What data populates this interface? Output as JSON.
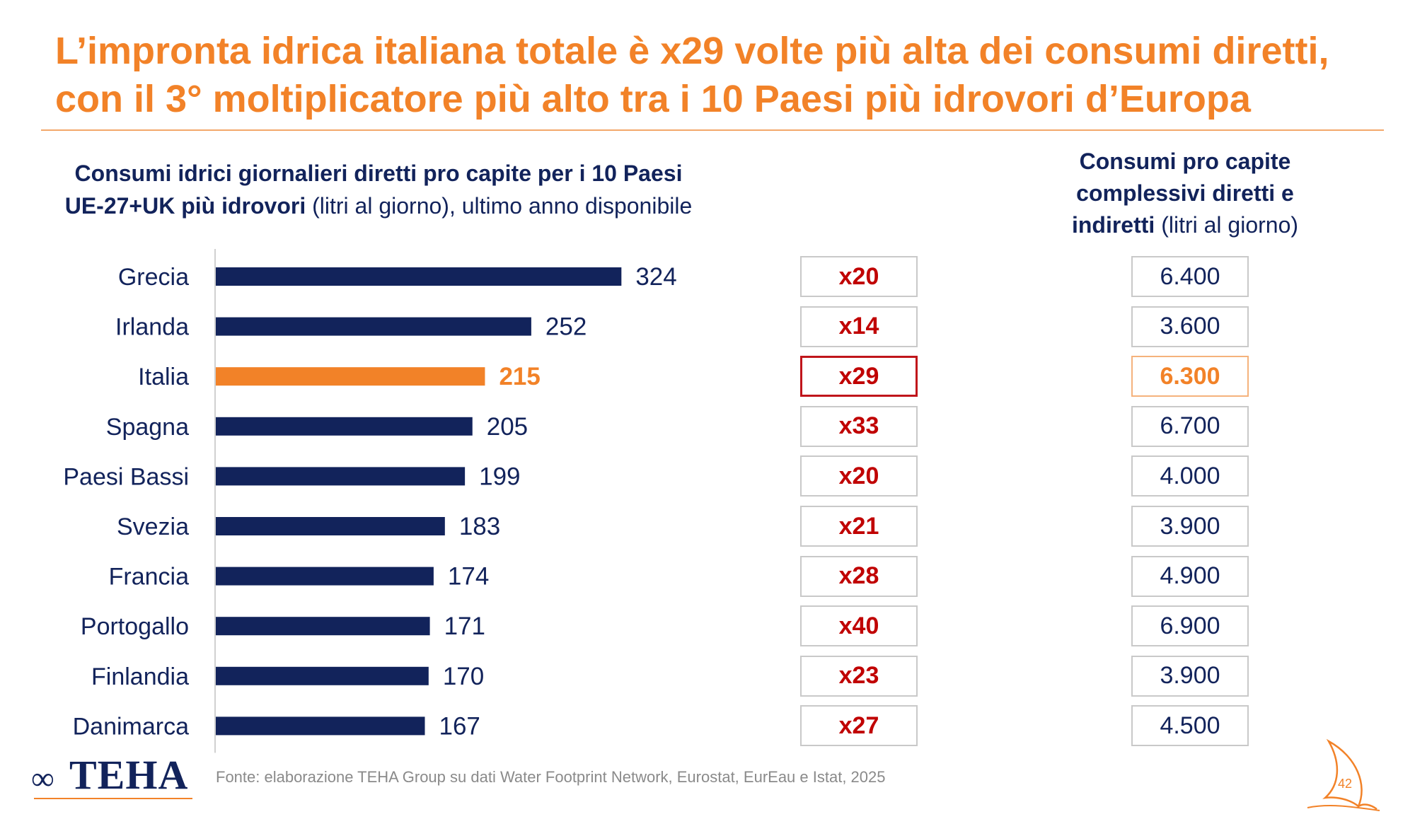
{
  "title": {
    "line1": "L’impronta idrica italiana totale è x29 volte più alta dei consumi diretti,",
    "line2": "con il 3° moltiplicatore più alto tra i 10 Paesi più idrovori d’Europa"
  },
  "left_header": {
    "bold_line1": "Consumi idrici giornalieri diretti pro capite per i 10 Paesi",
    "bold_line2": "UE-27+UK più idrovori",
    "normal_line2": " (litri al giorno), ultimo anno disponibile"
  },
  "right_header": {
    "bold1": "Consumi pro capite",
    "bold2": "complessivi diretti e",
    "bold3": "indiretti",
    "normal3": " (litri al giorno)"
  },
  "chart_data": {
    "type": "bar",
    "orientation": "horizontal",
    "categories": [
      "Grecia",
      "Irlanda",
      "Italia",
      "Spagna",
      "Paesi Bassi",
      "Svezia",
      "Francia",
      "Portogallo",
      "Finlandia",
      "Danimarca"
    ],
    "values": [
      324,
      252,
      215,
      205,
      199,
      183,
      174,
      171,
      170,
      167
    ],
    "value_labels": [
      "324",
      "252",
      "215",
      "205",
      "199",
      "183",
      "174",
      "171",
      "170",
      "167"
    ],
    "highlight_index": 2,
    "bar_color": "#12235b",
    "highlight_color": "#f28228",
    "multipliers": [
      "x20",
      "x14",
      "x29",
      "x33",
      "x20",
      "x21",
      "x28",
      "x40",
      "x23",
      "x27"
    ],
    "totals": [
      "6.400",
      "3.600",
      "6.300",
      "6.700",
      "4.000",
      "3.900",
      "4.900",
      "6.900",
      "3.900",
      "4.500"
    ]
  },
  "source": "Fonte: elaborazione TEHA Group su dati Water Footprint Network, Eurostat, EurEau e Istat, 2025",
  "logo": {
    "text": "TEHA",
    "mark": "∞"
  },
  "page_number": "42",
  "colors": {
    "accent": "#f28228",
    "navy": "#12235b",
    "red": "#c00000"
  }
}
